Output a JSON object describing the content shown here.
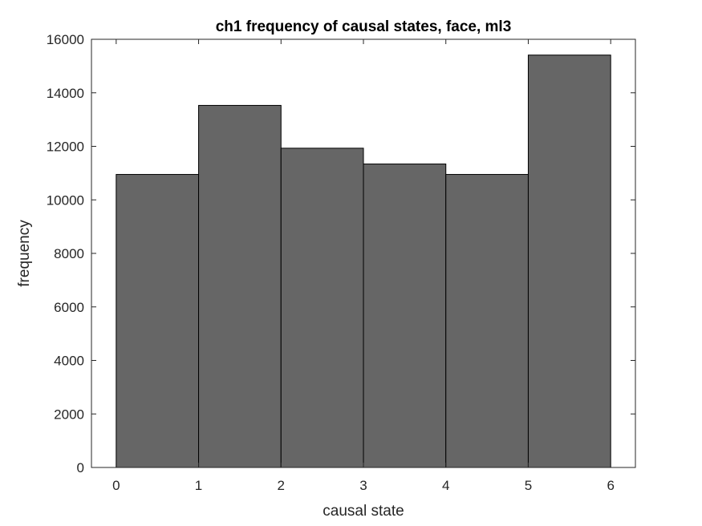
{
  "chart_data": {
    "type": "bar",
    "title": "ch1 frequency of causal states, face, ml3",
    "xlabel": "causal state",
    "ylabel": "frequency",
    "bin_edges": [
      0,
      1,
      2,
      3,
      4,
      5,
      6
    ],
    "values": [
      10950,
      13530,
      11930,
      11340,
      10950,
      15410
    ],
    "xlim": [
      -0.3,
      6.3
    ],
    "ylim": [
      0,
      16000
    ],
    "xticks": [
      0,
      1,
      2,
      3,
      4,
      5,
      6
    ],
    "yticks": [
      0,
      2000,
      4000,
      6000,
      8000,
      10000,
      12000,
      14000,
      16000
    ],
    "grid": false,
    "colors": {
      "bar_fill": "#666666",
      "bar_edge": "#000000",
      "axis": "#262626"
    }
  }
}
